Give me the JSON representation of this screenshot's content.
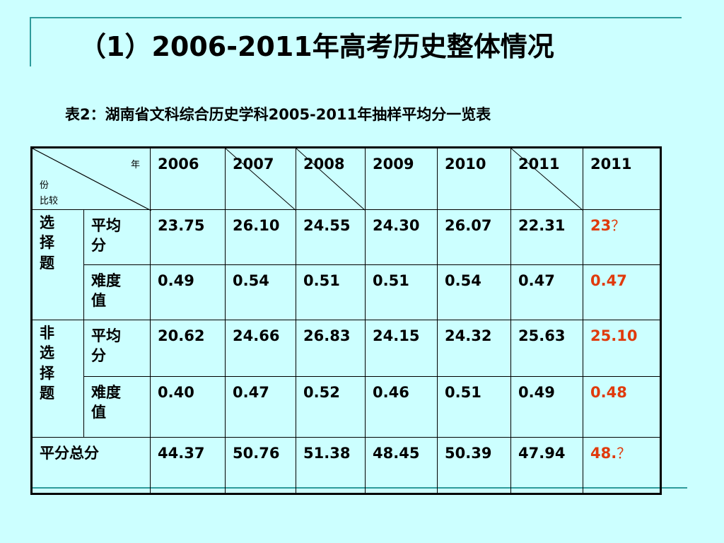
{
  "title": "（1）2006-2011年高考历史整体情况",
  "subtitle": "表2：湖南省文科综合历史学科2005-2011年抽样平均分一览表",
  "corner": {
    "year": "年",
    "fen": "份",
    "bijiao": "比较"
  },
  "years": [
    "2006",
    "2007",
    "2008",
    "2009",
    "2010",
    "2011",
    "2011"
  ],
  "groups": {
    "choice": [
      "选",
      "择",
      "题"
    ],
    "nonchoice": [
      "非",
      "选",
      "择",
      "题"
    ]
  },
  "row_labels": {
    "avg": [
      "平均",
      "分"
    ],
    "difficulty": [
      "难度",
      "值"
    ],
    "total": "平分总分"
  },
  "rows": {
    "choice_avg": [
      "23.75",
      "26.10",
      "24.55",
      "24.30",
      "26.07",
      "22.31"
    ],
    "choice_avg_est": "23",
    "choice_diff": [
      "0.49",
      "0.54",
      "0.51",
      "0.51",
      "0.54",
      "0.47"
    ],
    "choice_diff_est": "0.47",
    "nonchoice_avg": [
      "20.62",
      "24.66",
      "26.83",
      "24.15",
      "24.32",
      "25.63"
    ],
    "nonchoice_avg_est": "25.10",
    "nonchoice_diff": [
      "0.40",
      "0.47",
      "0.52",
      "0.46",
      "0.51",
      "0.49"
    ],
    "nonchoice_diff_est": "0.48",
    "total": [
      "44.37",
      "50.76",
      "51.38",
      "48.45",
      "50.39",
      "47.94"
    ],
    "total_est": "48.",
    "question_mark": "？"
  },
  "colors": {
    "background": "#ccffff",
    "accent_line": "#2e9c9c",
    "estimate_red": "#e03a0c"
  }
}
